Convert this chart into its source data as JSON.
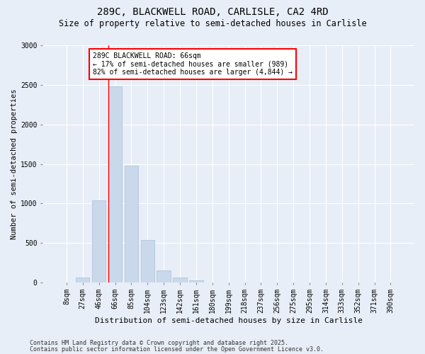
{
  "title1": "289C, BLACKWELL ROAD, CARLISLE, CA2 4RD",
  "title2": "Size of property relative to semi-detached houses in Carlisle",
  "xlabel": "Distribution of semi-detached houses by size in Carlisle",
  "ylabel": "Number of semi-detached properties",
  "bar_labels": [
    "8sqm",
    "27sqm",
    "46sqm",
    "66sqm",
    "85sqm",
    "104sqm",
    "123sqm",
    "142sqm",
    "161sqm",
    "180sqm",
    "199sqm",
    "218sqm",
    "237sqm",
    "256sqm",
    "275sqm",
    "295sqm",
    "314sqm",
    "333sqm",
    "352sqm",
    "371sqm",
    "390sqm"
  ],
  "bar_values": [
    0,
    60,
    1040,
    2480,
    1480,
    540,
    150,
    60,
    30,
    0,
    0,
    0,
    0,
    0,
    0,
    0,
    0,
    0,
    0,
    0,
    0
  ],
  "bar_color": "#c9d9eb",
  "bar_edge_color": "#a8bfd4",
  "red_line_bar_index": 3,
  "ylim": [
    0,
    3000
  ],
  "yticks": [
    0,
    500,
    1000,
    1500,
    2000,
    2500,
    3000
  ],
  "annotation_title": "289C BLACKWELL ROAD: 66sqm",
  "annotation_line1": "← 17% of semi-detached houses are smaller (989)",
  "annotation_line2": "82% of semi-detached houses are larger (4,844) →",
  "footer1": "Contains HM Land Registry data © Crown copyright and database right 2025.",
  "footer2": "Contains public sector information licensed under the Open Government Licence v3.0.",
  "background_color": "#e8eef7",
  "plot_bg_color": "#e8eef7",
  "grid_color": "#ffffff",
  "title1_fontsize": 10,
  "title2_fontsize": 8.5,
  "xlabel_fontsize": 8,
  "ylabel_fontsize": 7.5,
  "tick_fontsize": 7,
  "ann_fontsize": 7,
  "footer_fontsize": 6
}
